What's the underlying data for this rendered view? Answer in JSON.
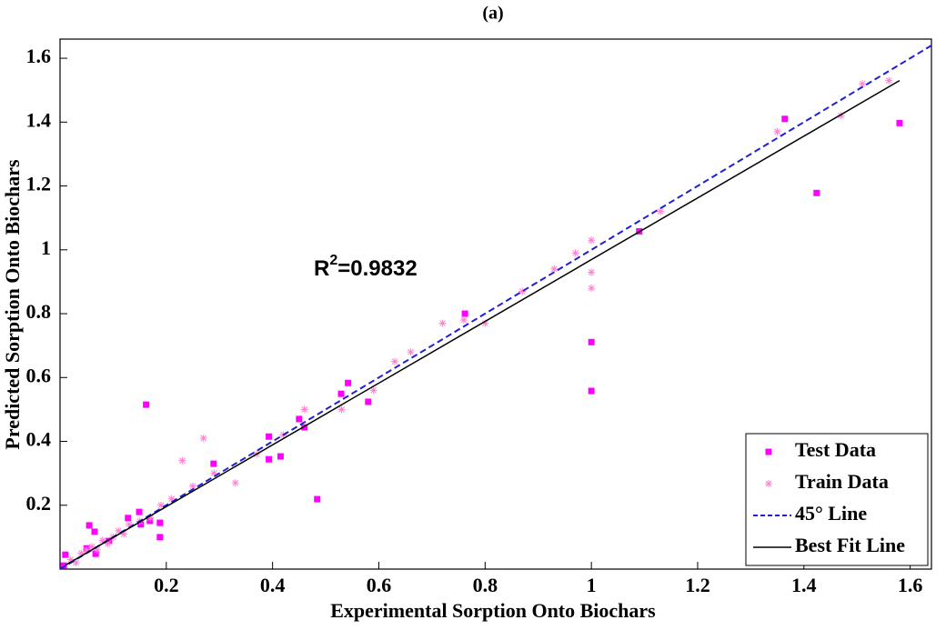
{
  "chart_data": {
    "type": "scatter",
    "title": "(a)",
    "x_label": "Experimental Sorption Onto Biochars",
    "y_label": "Predicted Sorption Onto Biochars",
    "annotation": [
      "R",
      "2",
      "=0.9832"
    ],
    "xlim": [
      0,
      1.64
    ],
    "ylim": [
      0,
      1.66
    ],
    "xticks": [
      0.2,
      0.4,
      0.6,
      0.8,
      1,
      1.2,
      1.4,
      1.6
    ],
    "yticks": [
      0.2,
      0.4,
      0.6,
      0.8,
      1,
      1.2,
      1.4,
      1.6
    ],
    "legend": "lower right",
    "series": [
      {
        "name": "Test Data",
        "color": "#ff00ff",
        "marker": "square",
        "x": [
          1.58,
          1.364,
          1.424,
          1.0,
          1.0,
          1.09,
          0.762,
          0.542,
          0.529,
          0.58,
          0.45,
          0.46,
          0.393,
          0.393,
          0.415,
          0.484,
          0.162,
          0.289,
          0.055,
          0.065,
          0.01,
          0.007,
          0.188,
          0.149,
          0.128,
          0.152,
          0.067,
          0.05,
          0.092,
          0.169,
          0.188
        ],
        "values": [
          1.397,
          1.41,
          1.178,
          0.711,
          0.558,
          1.058,
          0.8,
          0.583,
          0.549,
          0.524,
          0.47,
          0.444,
          0.415,
          0.344,
          0.353,
          0.219,
          0.515,
          0.33,
          0.137,
          0.117,
          0.045,
          0.011,
          0.1,
          0.179,
          0.16,
          0.14,
          0.048,
          0.065,
          0.088,
          0.151,
          0.145
        ]
      },
      {
        "name": "Train Data",
        "color": "#ff7fd0",
        "marker": "plus",
        "x": [
          0.02,
          0.03,
          0.04,
          0.05,
          0.06,
          0.07,
          0.08,
          0.09,
          0.1,
          0.11,
          0.12,
          0.13,
          0.15,
          0.17,
          0.19,
          0.21,
          0.23,
          0.25,
          0.27,
          0.29,
          0.33,
          0.37,
          0.42,
          0.46,
          0.53,
          0.59,
          0.63,
          0.66,
          0.72,
          0.76,
          0.8,
          0.87,
          0.93,
          0.97,
          1.0,
          1.0,
          1.0,
          1.13,
          1.35,
          1.47,
          1.51,
          1.56
        ],
        "values": [
          0.03,
          0.02,
          0.05,
          0.06,
          0.07,
          0.06,
          0.09,
          0.08,
          0.1,
          0.12,
          0.11,
          0.14,
          0.15,
          0.16,
          0.2,
          0.22,
          0.34,
          0.26,
          0.41,
          0.3,
          0.27,
          0.36,
          0.42,
          0.5,
          0.5,
          0.56,
          0.65,
          0.68,
          0.77,
          0.78,
          0.77,
          0.87,
          0.94,
          0.99,
          1.03,
          0.93,
          0.88,
          1.12,
          1.37,
          1.42,
          1.52,
          1.53
        ]
      },
      {
        "name": "45° Line",
        "color": "#1f1fd6",
        "line": "dashed",
        "x": [
          0,
          1.64
        ],
        "values": [
          0,
          1.64
        ]
      },
      {
        "name": "Best Fit Line",
        "color": "#000000",
        "line": "solid",
        "x": [
          0.01,
          1.58
        ],
        "values": [
          0.012,
          1.53
        ]
      }
    ]
  }
}
